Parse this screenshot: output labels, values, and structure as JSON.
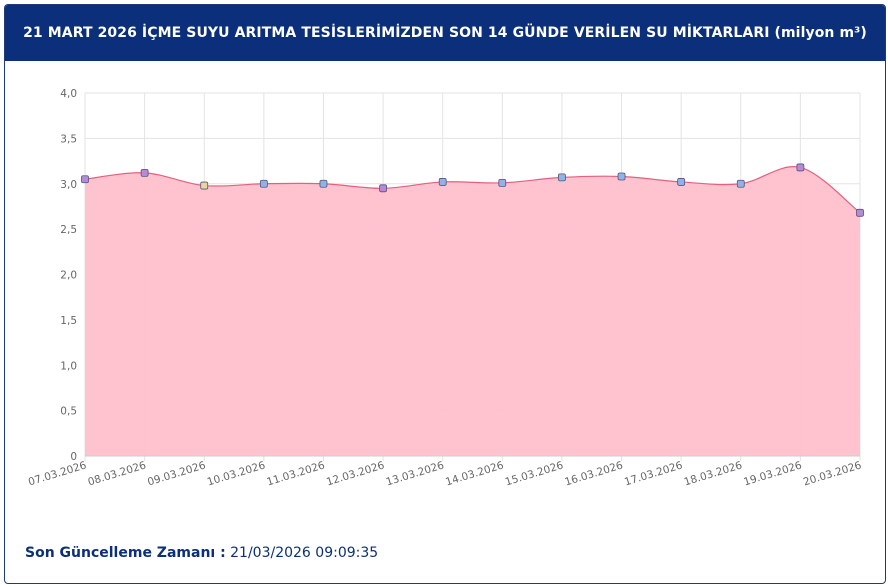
{
  "header": {
    "title": "21 MART 2026 İÇME SUYU ARITMA TESİSLERİMİZDEN SON 14 GÜNDE VERİLEN SU MİKTARLARI (milyon m³)"
  },
  "footer": {
    "label": "Son Güncelleme Zamanı :",
    "value": "21/03/2026 09:09:35"
  },
  "colors": {
    "header_bg": "#0b2f7a",
    "area_fill": "#ffc0cd",
    "line": "#e4607e",
    "marker_blue": "#8fb3e8",
    "marker_purple": "#b58ad6",
    "marker_yellow": "#e6d89a"
  },
  "chart_data": {
    "type": "area",
    "title": "21 MART 2026 İÇME SUYU ARITMA TESİSLERİMİZDEN SON 14 GÜNDE VERİLEN SU MİKTARLARI (milyon m³)",
    "xlabel": "",
    "ylabel": "",
    "ylim": [
      0,
      4
    ],
    "yticks": [
      "0",
      "0,5",
      "1,0",
      "1,5",
      "2,0",
      "2,5",
      "3,0",
      "3,5",
      "4,0"
    ],
    "grid": true,
    "categories": [
      "07.03.2026",
      "08.03.2026",
      "09.03.2026",
      "10.03.2026",
      "11.03.2026",
      "12.03.2026",
      "13.03.2026",
      "14.03.2026",
      "15.03.2026",
      "16.03.2026",
      "17.03.2026",
      "18.03.2026",
      "19.03.2026",
      "20.03.2026"
    ],
    "values": [
      3.05,
      3.12,
      2.98,
      3.0,
      3.0,
      2.95,
      3.02,
      3.01,
      3.07,
      3.08,
      3.02,
      3.0,
      3.18,
      2.68
    ],
    "marker_colors": [
      "purple",
      "purple",
      "yellow",
      "blue",
      "blue",
      "purple",
      "blue",
      "blue",
      "blue",
      "blue",
      "blue",
      "blue",
      "purple",
      "purple"
    ]
  }
}
